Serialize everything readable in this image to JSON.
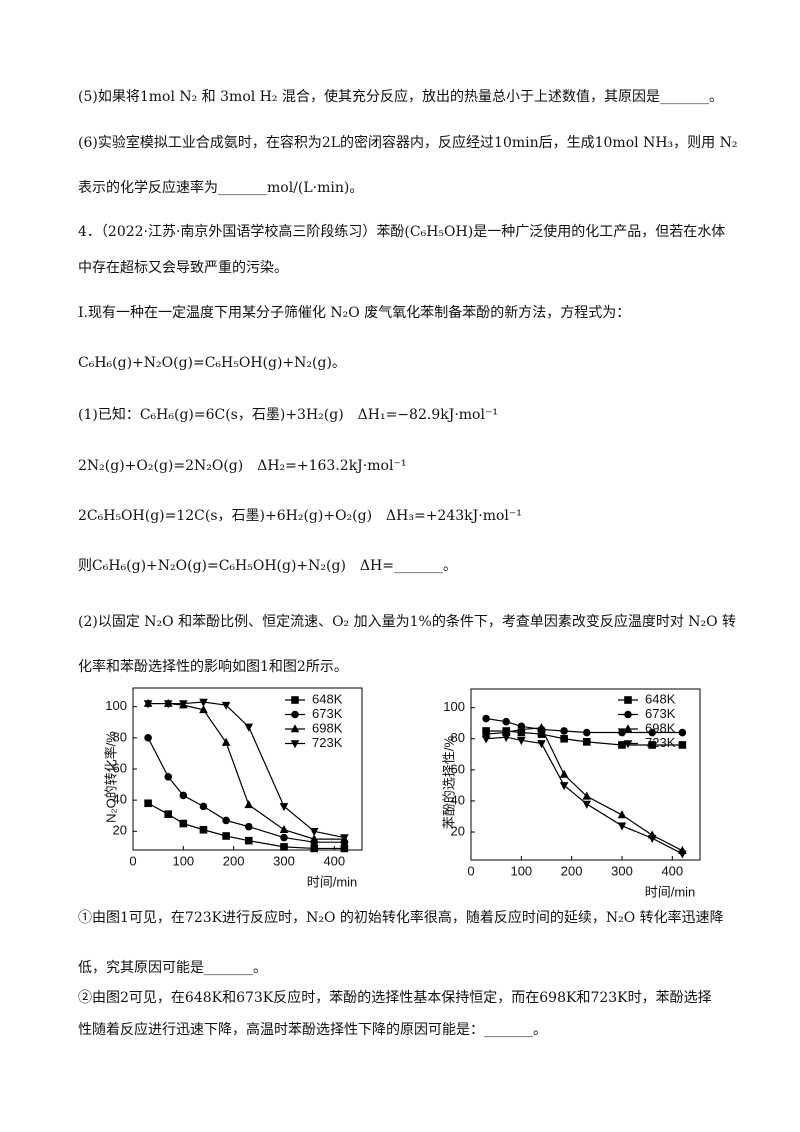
{
  "document": {
    "paragraphs": [
      "(5)如果将1mol N₂ 和 3mol H₂ 混合，使其充分反应，放出的热量总小于上述数值，其原因是_______。",
      "(6)实验室模拟工业合成氨时，在容积为2L的密闭容器内，反应经过10min后，生成10mol NH₃，则用 N₂",
      "表示的化学反应速率为_______mol/(L·min)。",
      "4．（2022·江苏·南京外国语学校高三阶段练习）苯酚(C₆H₅OH)是一种广泛使用的化工产品，但若在水体",
      "中存在超标又会导致严重的污染。",
      "I.现有一种在一定温度下用某分子筛催化 N₂O 废气氧化苯制备苯酚的新方法，方程式为：",
      "C₆H₆(g)+N₂O(g)=C₆H₅OH(g)+N₂(g)。",
      "(1)已知：C₆H₆(g)=6C(s，石墨)+3H₂(g)　ΔH₁=−82.9kJ·mol⁻¹",
      "2N₂(g)+O₂(g)=2N₂O(g)　ΔH₂=+163.2kJ·mol⁻¹",
      "2C₆H₅OH(g)=12C(s，石墨)+6H₂(g)+O₂(g)　ΔH₃=+243kJ·mol⁻¹",
      "则C₆H₆(g)+N₂O(g)=C₆H₅OH(g)+N₂(g)　ΔH=_______。",
      "(2)以固定 N₂O 和苯酚比例、恒定流速、O₂ 加入量为1%的条件下，考查单因素改变反应温度时对 N₂O 转",
      "化率和苯酚选择性的影响如图1和图2所示。",
      "①由图1可见，在723K进行反应时，N₂O 的初始转化率很高，随着反应时间的延续，N₂O 转化率迅速降",
      "低，究其原因可能是_______。",
      "②由图2可见，在648K和673K反应时，苯酚的选择性基本保持恒定，而在698K和723K时，苯酚选择",
      "性随着反应进行迅速下降，高温时苯酚选择性下降的原因可能是：_______。"
    ]
  },
  "chart_data": [
    {
      "type": "line",
      "y_label": "N₂O的转化率/%",
      "x_label": "时间/min",
      "xlim": [
        0,
        455
      ],
      "ylim": [
        8,
        112
      ],
      "xticks": [
        0,
        100,
        200,
        300,
        400
      ],
      "yticks": [
        20,
        40,
        60,
        80,
        100
      ],
      "x": [
        30,
        70,
        100,
        140,
        185,
        230,
        300,
        360,
        420
      ],
      "series": [
        {
          "name": "648K",
          "color": "#000000",
          "marker": "square",
          "values": [
            38,
            31,
            25,
            21,
            17,
            14,
            10,
            9,
            9
          ]
        },
        {
          "name": "673K",
          "color": "#000000",
          "marker": "circle",
          "values": [
            80,
            55,
            43,
            36,
            27,
            23,
            16,
            13,
            13
          ]
        },
        {
          "name": "698K",
          "color": "#000000",
          "marker": "triangle-up",
          "values": [
            102,
            102,
            101,
            98,
            77,
            37,
            21,
            15,
            15
          ]
        },
        {
          "name": "723K",
          "color": "#000000",
          "marker": "triangle-down",
          "values": [
            102,
            102,
            102,
            103,
            101,
            87,
            36,
            20,
            16
          ]
        }
      ]
    },
    {
      "type": "line",
      "y_label": "苯酚的选择性/%",
      "x_label": "时间/min",
      "xlim": [
        0,
        455
      ],
      "ylim": [
        2,
        112
      ],
      "xticks": [
        0,
        100,
        200,
        300,
        400
      ],
      "yticks": [
        20,
        40,
        60,
        80,
        100
      ],
      "x": [
        30,
        70,
        100,
        140,
        185,
        230,
        300,
        360,
        420
      ],
      "series": [
        {
          "name": "648K",
          "color": "#000000",
          "marker": "square",
          "values": [
            85,
            85,
            84,
            83,
            80,
            78,
            76,
            76,
            76
          ]
        },
        {
          "name": "673K",
          "color": "#000000",
          "marker": "circle",
          "values": [
            93,
            91,
            88,
            86,
            85,
            84,
            84,
            84,
            84
          ]
        },
        {
          "name": "698K",
          "color": "#000000",
          "marker": "triangle-up",
          "values": [
            83,
            84,
            86,
            87,
            57,
            43,
            31,
            18,
            8
          ]
        },
        {
          "name": "723K",
          "color": "#000000",
          "marker": "triangle-down",
          "values": [
            80,
            81,
            79,
            77,
            50,
            38,
            24,
            16,
            6
          ]
        }
      ]
    }
  ]
}
